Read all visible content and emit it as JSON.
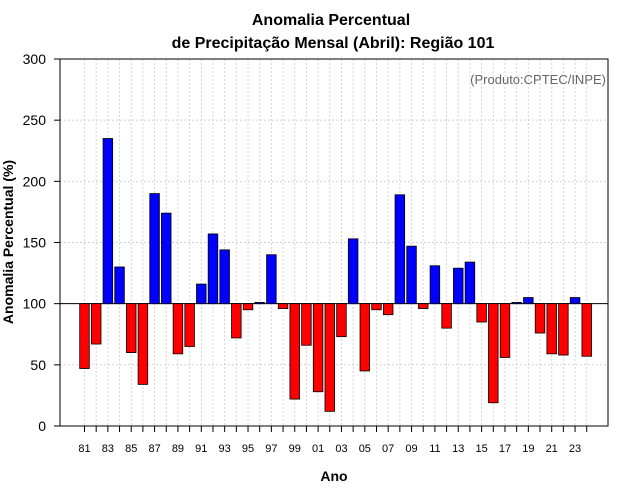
{
  "colors": {
    "positive": "#0000ff",
    "negative": "#ff0000",
    "grid": "#d3d3d3",
    "annotation": "#666666"
  },
  "chart_data": {
    "type": "bar",
    "title_line1": "Anomalia Percentual",
    "title_line2": "de Precipitação Mensal (Abril): Região 101",
    "xlabel": "Ano",
    "ylabel": "Anomalia Percentual (%)",
    "annotation": "(Produto:CPTEC/INPE)",
    "baseline": 100,
    "ylim": [
      0,
      300
    ],
    "yticks": [
      "0",
      "50",
      "100",
      "150",
      "200",
      "250",
      "300"
    ],
    "grid": true,
    "categories": [
      "1981",
      "1982",
      "1983",
      "1984",
      "1985",
      "1986",
      "1987",
      "1988",
      "1989",
      "1990",
      "1991",
      "1992",
      "1993",
      "1994",
      "1995",
      "1996",
      "1997",
      "1998",
      "1999",
      "2000",
      "2001",
      "2002",
      "2003",
      "2004",
      "2005",
      "2006",
      "2007",
      "2008",
      "2009",
      "2010",
      "2011",
      "2012",
      "2013",
      "2014",
      "2015",
      "2016",
      "2017",
      "2018",
      "2019",
      "2020",
      "2021",
      "2022",
      "2023",
      "2024"
    ],
    "xtick_labels": [
      "81",
      "",
      "83",
      "",
      "85",
      "",
      "87",
      "",
      "89",
      "",
      "91",
      "",
      "93",
      "",
      "95",
      "",
      "97",
      "",
      "99",
      "",
      "01",
      "",
      "03",
      "",
      "05",
      "",
      "07",
      "",
      "09",
      "",
      "11",
      "",
      "13",
      "",
      "15",
      "",
      "17",
      "",
      "19",
      "",
      "21",
      "",
      "23",
      ""
    ],
    "values": [
      47,
      67,
      235,
      130,
      60,
      34,
      190,
      174,
      59,
      65,
      116,
      157,
      144,
      72,
      95,
      101,
      140,
      96,
      22,
      66,
      28,
      12,
      73,
      153,
      45,
      95,
      91,
      189,
      147,
      96,
      131,
      80,
      129,
      134,
      85,
      19,
      56,
      101,
      105,
      76,
      59,
      58,
      105,
      57
    ]
  }
}
